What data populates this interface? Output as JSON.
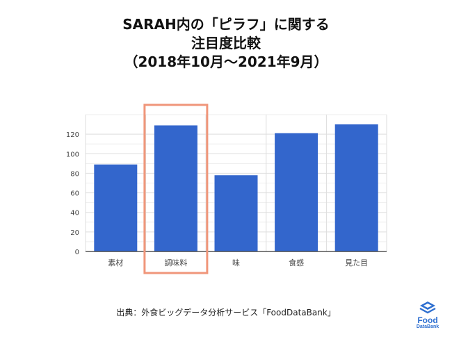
{
  "title_lines": [
    "SARAH内の「ピラフ」に関する",
    "注目度比較",
    "（2018年10月〜2021年9月）"
  ],
  "source": "出典：外食ビッグデータ分析サービス「FoodDataBank」",
  "logo": {
    "name": "FoodDataBank",
    "line1": "Food",
    "line2": "DataBank",
    "icon": "stacked-bowls-icon"
  },
  "colors": {
    "bar": "#3366cc",
    "highlight": "#f0967a",
    "grid": "#dddddd",
    "axis": "#333333"
  },
  "chart_data": {
    "type": "bar",
    "title": "SARAH内の「ピラフ」に関する 注目度比較 （2018年10月〜2021年9月）",
    "categories": [
      "素材",
      "調味料",
      "味",
      "食感",
      "見た目"
    ],
    "values": [
      89,
      129,
      78,
      121,
      130
    ],
    "ylim": [
      0,
      140
    ],
    "yticks": [
      0,
      20,
      40,
      60,
      80,
      100,
      120
    ],
    "xlabel": "",
    "ylabel": "",
    "grid": true,
    "highlight_category": "調味料"
  }
}
